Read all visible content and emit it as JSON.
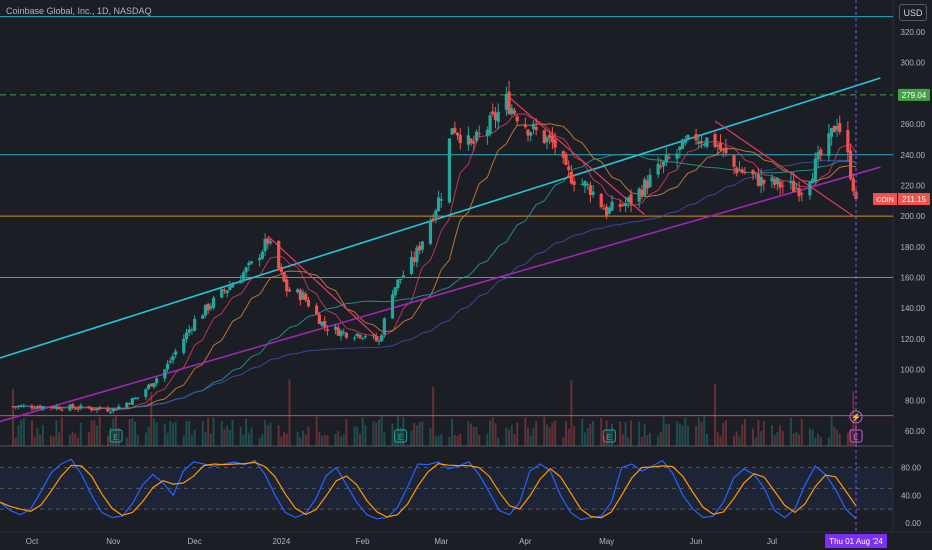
{
  "header": {
    "title": "Coinbase Global, Inc., 1D, NASDAQ",
    "currency": "USD"
  },
  "colors": {
    "background": "#1c1e26",
    "up": "#26a69a",
    "down": "#ef5350",
    "channel": "#26c6da",
    "trendline_purple": "#9c27b0",
    "down_trendlines": "#e53960",
    "resistance_dashed": "#4caf50",
    "support_orange": "#f5a623",
    "ma_short": "#e53960",
    "ma_mid": "#e08a3c",
    "ma_long": "#26a69a",
    "ma_longest": "#3f51b5",
    "stoch_k": "#2962ff",
    "stoch_d": "#ff9800"
  },
  "price_axis": {
    "labels": [
      "320.00",
      "300.00",
      "280.00",
      "260.00",
      "240.00",
      "220.00",
      "200.00",
      "180.00",
      "160.00",
      "140.00",
      "120.00",
      "100.00",
      "80.00",
      "60.00"
    ],
    "current_tag": {
      "symbol": "COIN",
      "price": "211.15"
    },
    "level_tag": "279.04"
  },
  "stoch_axis": {
    "labels": [
      "80.00",
      "40.00",
      "0.00"
    ]
  },
  "time_axis": {
    "labels": [
      "Oct",
      "Nov",
      "Dec",
      "2024",
      "Feb",
      "Mar",
      "Apr",
      "May",
      "Jun",
      "Jul"
    ],
    "cursor_label": "Thu 01 Aug '24"
  },
  "events": {
    "earnings_marker": "E",
    "dividend_marker": "⚡"
  },
  "chart_data": {
    "type": "candlestick",
    "symbol": "COIN",
    "interval": "1D",
    "exchange": "NASDAQ",
    "ylim": [
      50,
      330
    ],
    "last_price": 211.15,
    "marked_level": 279.04,
    "horizontal_levels": [
      330,
      279.04,
      240,
      200,
      160,
      70
    ],
    "anchors": [
      {
        "x": "2023-09-25",
        "price": 76
      },
      {
        "x": "2023-10-05",
        "price": 76
      },
      {
        "x": "2023-10-20",
        "price": 75
      },
      {
        "x": "2023-11-01",
        "price": 74
      },
      {
        "x": "2023-11-10",
        "price": 82
      },
      {
        "x": "2023-11-20",
        "price": 100
      },
      {
        "x": "2023-12-01",
        "price": 132
      },
      {
        "x": "2023-12-10",
        "price": 148
      },
      {
        "x": "2023-12-22",
        "price": 168
      },
      {
        "x": "2023-12-28",
        "price": 184
      },
      {
        "x": "2024-01-04",
        "price": 152
      },
      {
        "x": "2024-01-10",
        "price": 148
      },
      {
        "x": "2024-01-18",
        "price": 128
      },
      {
        "x": "2024-01-25",
        "price": 124
      },
      {
        "x": "2024-02-02",
        "price": 123
      },
      {
        "x": "2024-02-07",
        "price": 118
      },
      {
        "x": "2024-02-12",
        "price": 152
      },
      {
        "x": "2024-02-20",
        "price": 172
      },
      {
        "x": "2024-03-01",
        "price": 215
      },
      {
        "x": "2024-03-05",
        "price": 260
      },
      {
        "x": "2024-03-12",
        "price": 245
      },
      {
        "x": "2024-03-20",
        "price": 262
      },
      {
        "x": "2024-03-25",
        "price": 275
      },
      {
        "x": "2024-04-02",
        "price": 258
      },
      {
        "x": "2024-04-12",
        "price": 246
      },
      {
        "x": "2024-04-16",
        "price": 228
      },
      {
        "x": "2024-04-25",
        "price": 218
      },
      {
        "x": "2024-05-01",
        "price": 203
      },
      {
        "x": "2024-05-10",
        "price": 210
      },
      {
        "x": "2024-05-20",
        "price": 230
      },
      {
        "x": "2024-06-03",
        "price": 252
      },
      {
        "x": "2024-06-10",
        "price": 248
      },
      {
        "x": "2024-06-17",
        "price": 232
      },
      {
        "x": "2024-06-28",
        "price": 222
      },
      {
        "x": "2024-07-12",
        "price": 218
      },
      {
        "x": "2024-07-22",
        "price": 248
      },
      {
        "x": "2024-07-25",
        "price": 263
      },
      {
        "x": "2024-07-29",
        "price": 238
      },
      {
        "x": "2024-08-01",
        "price": 211
      }
    ],
    "stochastic": {
      "ylim": [
        0,
        100
      ],
      "values": [
        30,
        18,
        12,
        20,
        45,
        72,
        85,
        92,
        70,
        40,
        15,
        8,
        10,
        28,
        55,
        70,
        58,
        40,
        75,
        88,
        85,
        82,
        85,
        88,
        84,
        90,
        70,
        40,
        15,
        8,
        14,
        35,
        68,
        80,
        55,
        30,
        12,
        6,
        8,
        22,
        52,
        85,
        84,
        88,
        78,
        82,
        88,
        70,
        45,
        18,
        12,
        30,
        75,
        85,
        75,
        40,
        15,
        5,
        8,
        10,
        30,
        80,
        85,
        75,
        82,
        90,
        72,
        40,
        20,
        8,
        10,
        30,
        65,
        78,
        70,
        50,
        18,
        8,
        20,
        55,
        82,
        70,
        48,
        20,
        6
      ]
    }
  }
}
